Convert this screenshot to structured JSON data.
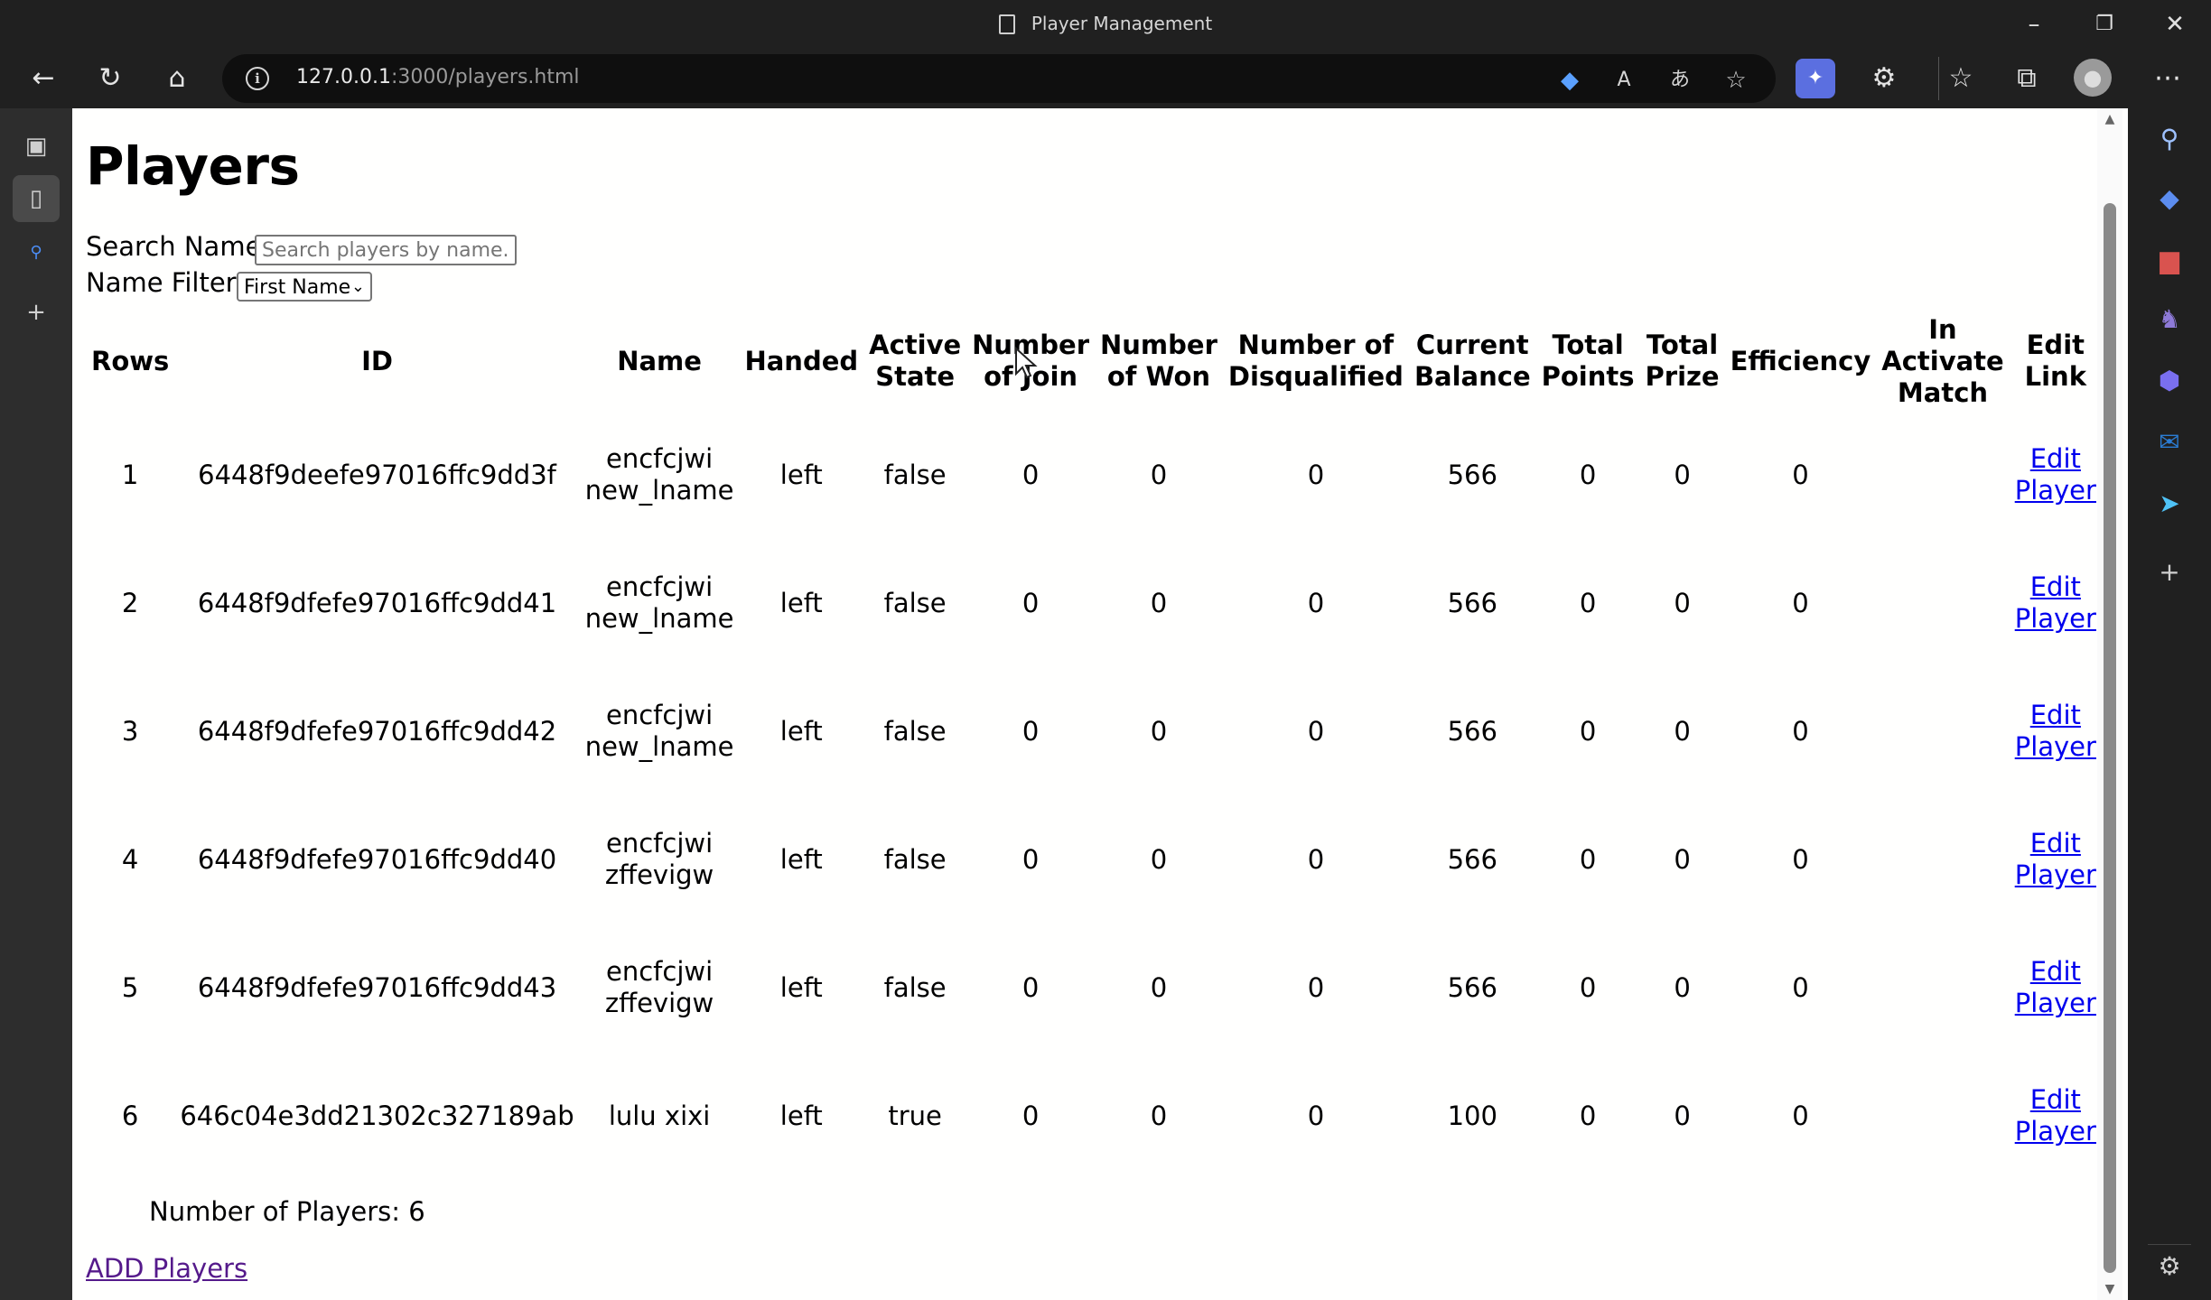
{
  "window": {
    "title": "Player Management"
  },
  "browser": {
    "url_host": "127.0.0.1",
    "url_path": ":3000/players.html"
  },
  "page": {
    "heading": "Players",
    "search": {
      "label": "Search Name:",
      "placeholder": "Search players by name...",
      "value": ""
    },
    "filter": {
      "label": "Name Filter:",
      "selected": "First Name"
    },
    "table": {
      "headers": [
        "Rows",
        "ID",
        "Name",
        "Handed",
        "Active State",
        "Number of Join",
        "Number of Won",
        "Number of Disqualified",
        "Current Balance",
        "Total Points",
        "Total Prize",
        "Efficiency",
        "In Activate Match",
        "Edit Link"
      ],
      "rows": [
        {
          "row": "1",
          "id": "6448f9deefe97016ffc9dd3f",
          "name": "encfcjwi new_lname",
          "handed": "left",
          "active": "false",
          "join": "0",
          "won": "0",
          "disq": "0",
          "balance": "566",
          "points": "0",
          "prize": "0",
          "efficiency": "0",
          "in_match": "",
          "edit": "Edit Player"
        },
        {
          "row": "2",
          "id": "6448f9dfefe97016ffc9dd41",
          "name": "encfcjwi new_lname",
          "handed": "left",
          "active": "false",
          "join": "0",
          "won": "0",
          "disq": "0",
          "balance": "566",
          "points": "0",
          "prize": "0",
          "efficiency": "0",
          "in_match": "",
          "edit": "Edit Player"
        },
        {
          "row": "3",
          "id": "6448f9dfefe97016ffc9dd42",
          "name": "encfcjwi new_lname",
          "handed": "left",
          "active": "false",
          "join": "0",
          "won": "0",
          "disq": "0",
          "balance": "566",
          "points": "0",
          "prize": "0",
          "efficiency": "0",
          "in_match": "",
          "edit": "Edit Player"
        },
        {
          "row": "4",
          "id": "6448f9dfefe97016ffc9dd40",
          "name": "encfcjwi zffevigw",
          "handed": "left",
          "active": "false",
          "join": "0",
          "won": "0",
          "disq": "0",
          "balance": "566",
          "points": "0",
          "prize": "0",
          "efficiency": "0",
          "in_match": "",
          "edit": "Edit Player"
        },
        {
          "row": "5",
          "id": "6448f9dfefe97016ffc9dd43",
          "name": "encfcjwi zffevigw",
          "handed": "left",
          "active": "false",
          "join": "0",
          "won": "0",
          "disq": "0",
          "balance": "566",
          "points": "0",
          "prize": "0",
          "efficiency": "0",
          "in_match": "",
          "edit": "Edit Player"
        },
        {
          "row": "6",
          "id": "646c04e3dd21302c327189ab",
          "name": "lulu xixi",
          "handed": "left",
          "active": "true",
          "join": "0",
          "won": "0",
          "disq": "0",
          "balance": "100",
          "points": "0",
          "prize": "0",
          "efficiency": "0",
          "in_match": "",
          "edit": "Edit Player"
        }
      ]
    },
    "player_count": "Number of Players: 6",
    "add_link": "ADD Players"
  },
  "colors": {
    "link": "#0000ee",
    "visited_link": "#551a8b",
    "chrome_dark": "#202020"
  },
  "icons": {
    "nav": [
      "back-icon",
      "refresh-icon",
      "home-icon"
    ],
    "toolbar": [
      "coupon-icon",
      "read-aloud-icon",
      "translate-icon",
      "add-favorite-icon",
      "extension-app-icon",
      "extensions-icon",
      "favorites-icon",
      "collections-icon",
      "profile-icon",
      "more-icon"
    ],
    "sidebar": [
      "search-icon",
      "shopping-icon",
      "tools-icon",
      "games-icon",
      "copilot-icon",
      "outlook-icon",
      "send-icon",
      "add-icon",
      "settings-icon"
    ]
  }
}
